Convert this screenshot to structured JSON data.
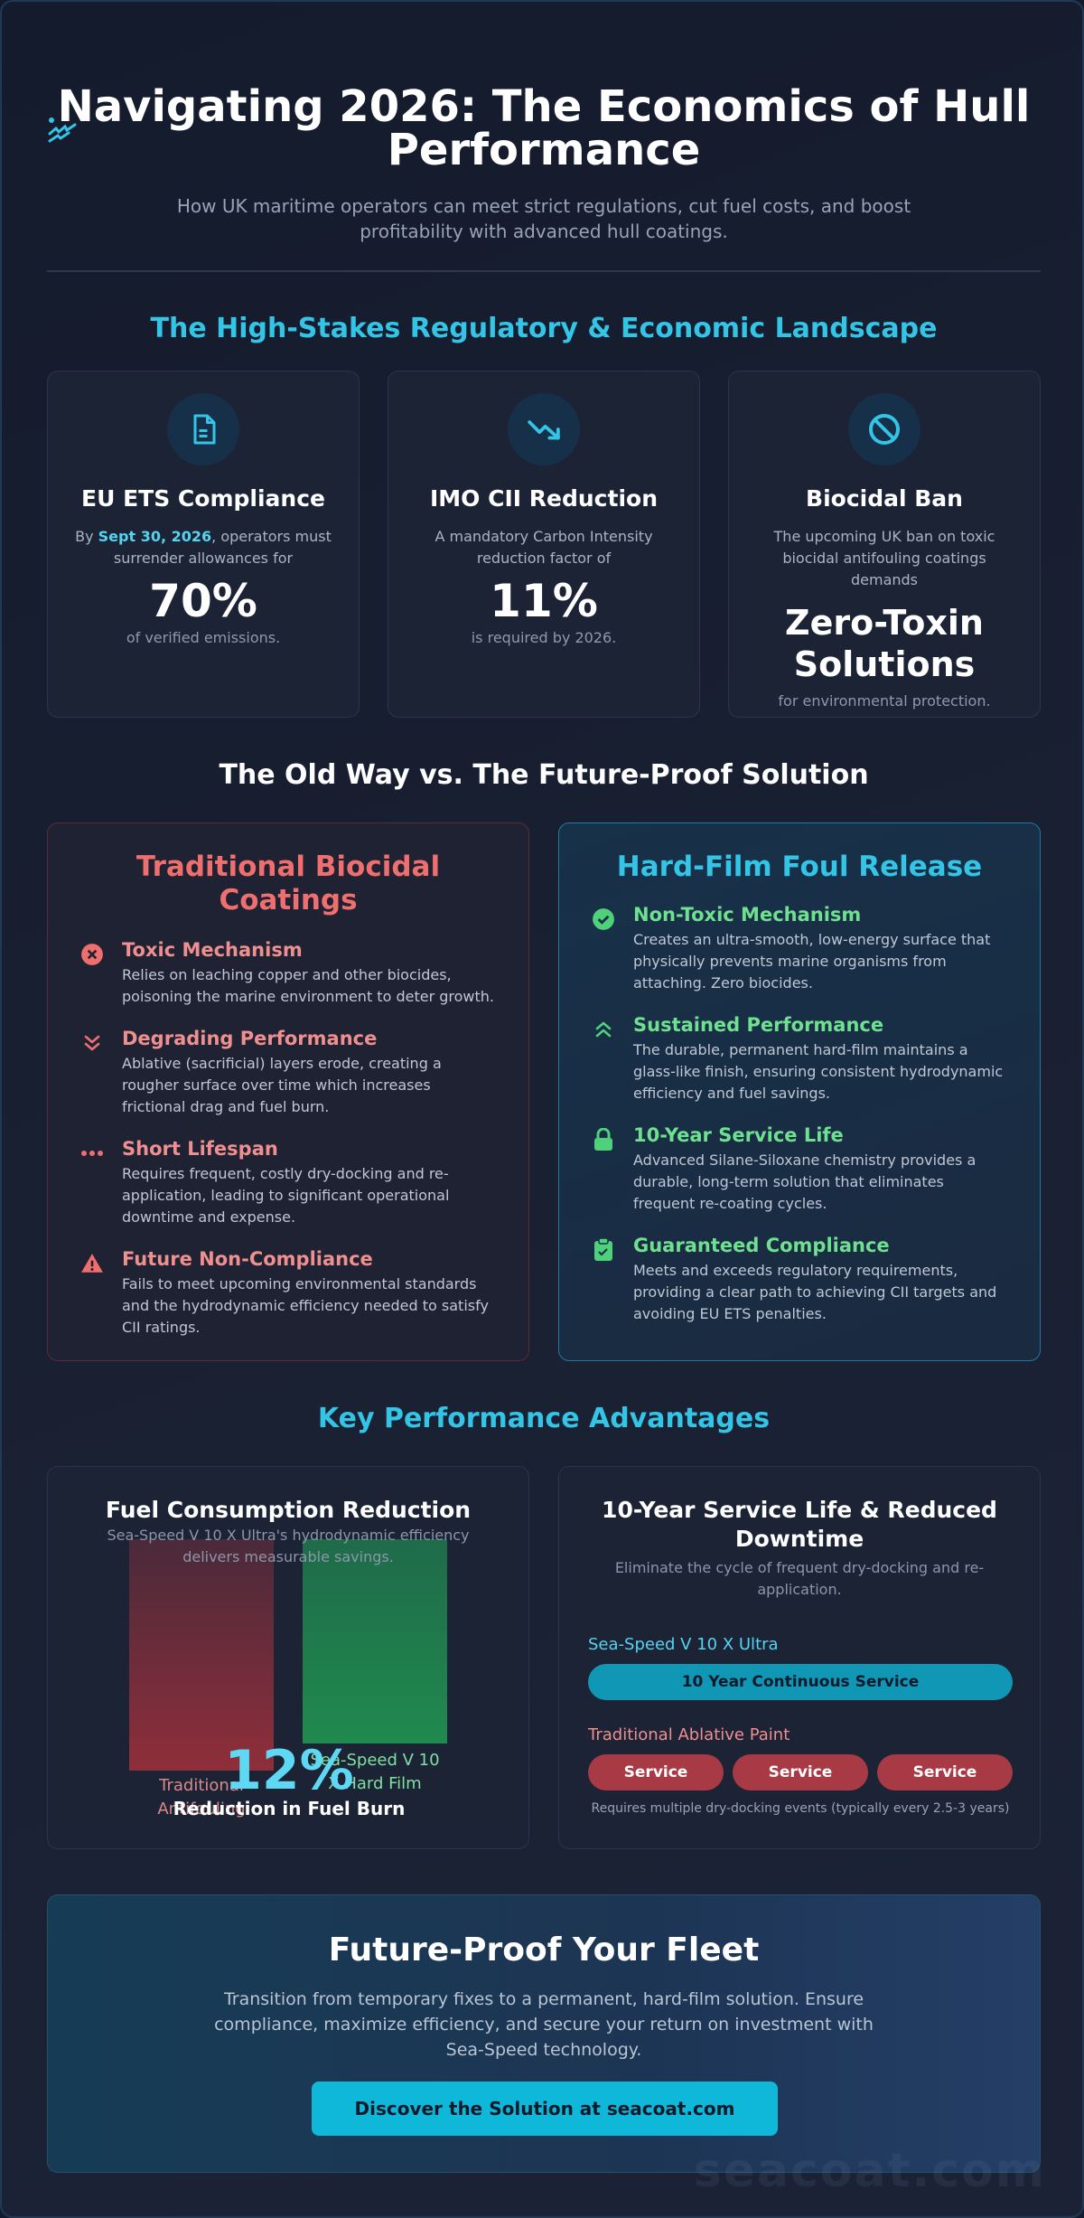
{
  "header": {
    "title": "Navigating 2026: The Economics of Hull Performance",
    "subtitle": "How UK maritime operators can meet strict regulations, cut fuel costs, and boost profitability with advanced hull coatings."
  },
  "landscape": {
    "title": "The High-Stakes Regulatory & Economic Landscape",
    "cards": [
      {
        "icon": "document-icon",
        "title": "EU ETS Compliance",
        "desc_prefix": "By ",
        "desc_highlight": "Sept 30, 2026",
        "desc_suffix": ", operators must surrender allowances for",
        "value": "70%",
        "foot": "of verified emissions."
      },
      {
        "icon": "trend-down-icon",
        "title": "IMO CII Reduction",
        "desc": "A mandatory Carbon Intensity reduction factor of",
        "value": "11%",
        "foot": "is required by 2026."
      },
      {
        "icon": "ban-icon",
        "title": "Biocidal Ban",
        "desc": "The upcoming UK ban on toxic biocidal antifouling coatings demands",
        "value": "Zero-Toxin Solutions",
        "foot": "for environmental protection."
      }
    ]
  },
  "comparison": {
    "title": "The Old Way vs. The Future-Proof Solution",
    "old": {
      "title": "Traditional Biocidal Coatings",
      "items": [
        {
          "icon": "x-circle-icon",
          "title": "Toxic Mechanism",
          "text": "Relies on leaching copper and other biocides, poisoning the marine environment to deter growth."
        },
        {
          "icon": "double-chevron-down-icon",
          "title": "Degrading Performance",
          "text": "Ablative (sacrificial) layers erode, creating a rougher surface over time which increases frictional drag and fuel burn."
        },
        {
          "icon": "ellipsis-icon",
          "title": "Short Lifespan",
          "text": "Requires frequent, costly dry-docking and re-application, leading to significant operational downtime and expense."
        },
        {
          "icon": "warning-icon",
          "title": "Future Non-Compliance",
          "text": "Fails to meet upcoming environmental standards and the hydrodynamic efficiency needed to satisfy CII ratings."
        }
      ]
    },
    "new": {
      "title": "Hard-Film Foul Release",
      "items": [
        {
          "icon": "check-circle-icon",
          "title": "Non-Toxic Mechanism",
          "text": "Creates an ultra-smooth, low-energy surface that physically prevents marine organisms from attaching. Zero biocides."
        },
        {
          "icon": "double-chevron-up-icon",
          "title": "Sustained Performance",
          "text": "The durable, permanent hard-film maintains a glass-like finish, ensuring consistent hydrodynamic efficiency and fuel savings."
        },
        {
          "icon": "lock-icon",
          "title": "10-Year Service Life",
          "text": "Advanced Silane-Siloxane chemistry provides a durable, long-term solution that eliminates frequent re-coating cycles."
        },
        {
          "icon": "clipboard-icon",
          "title": "Guaranteed Compliance",
          "text": "Meets and exceeds regulatory requirements, providing a clear path to achieving CII targets and avoiding EU ETS penalties."
        }
      ]
    }
  },
  "advantages": {
    "title": "Key Performance Advantages",
    "fuel": {
      "title": "Fuel Consumption Reduction",
      "subtitle": "Sea-Speed V 10 X Ultra's hydrodynamic efficiency delivers measurable savings.",
      "bars": [
        {
          "label": "Traditional Antifouling",
          "color": "#8f2e3a"
        },
        {
          "label": "Sea-Speed V 10 X Hard Film",
          "color": "#1f8a4e"
        }
      ],
      "value": "12%",
      "caption": "Reduction in Fuel Burn"
    },
    "service": {
      "title": "10-Year Service Life & Reduced Downtime",
      "subtitle": "Eliminate the cycle of frequent dry-docking and re-application.",
      "seaspeed_label": "Sea-Speed V 10 X Ultra",
      "seaspeed_bar": "10 Year Continuous Service",
      "traditional_label": "Traditional Ablative Paint",
      "traditional_segments": [
        "Service",
        "Service",
        "Service"
      ],
      "note": "Requires multiple dry-docking events (typically every 2.5-3 years)"
    }
  },
  "cta": {
    "title": "Future-Proof Your Fleet",
    "text": "Transition from temporary fixes to a permanent, hard-film solution. Ensure compliance, maximize efficiency, and secure your return on investment with Sea-Speed technology.",
    "button": "Discover the Solution at seacoat.com"
  },
  "watermark": "seacoat.com",
  "colors": {
    "accent": "#33c4e6",
    "danger": "#ef6f6f",
    "success": "#6fe08f",
    "button": "#0fb8d8"
  }
}
